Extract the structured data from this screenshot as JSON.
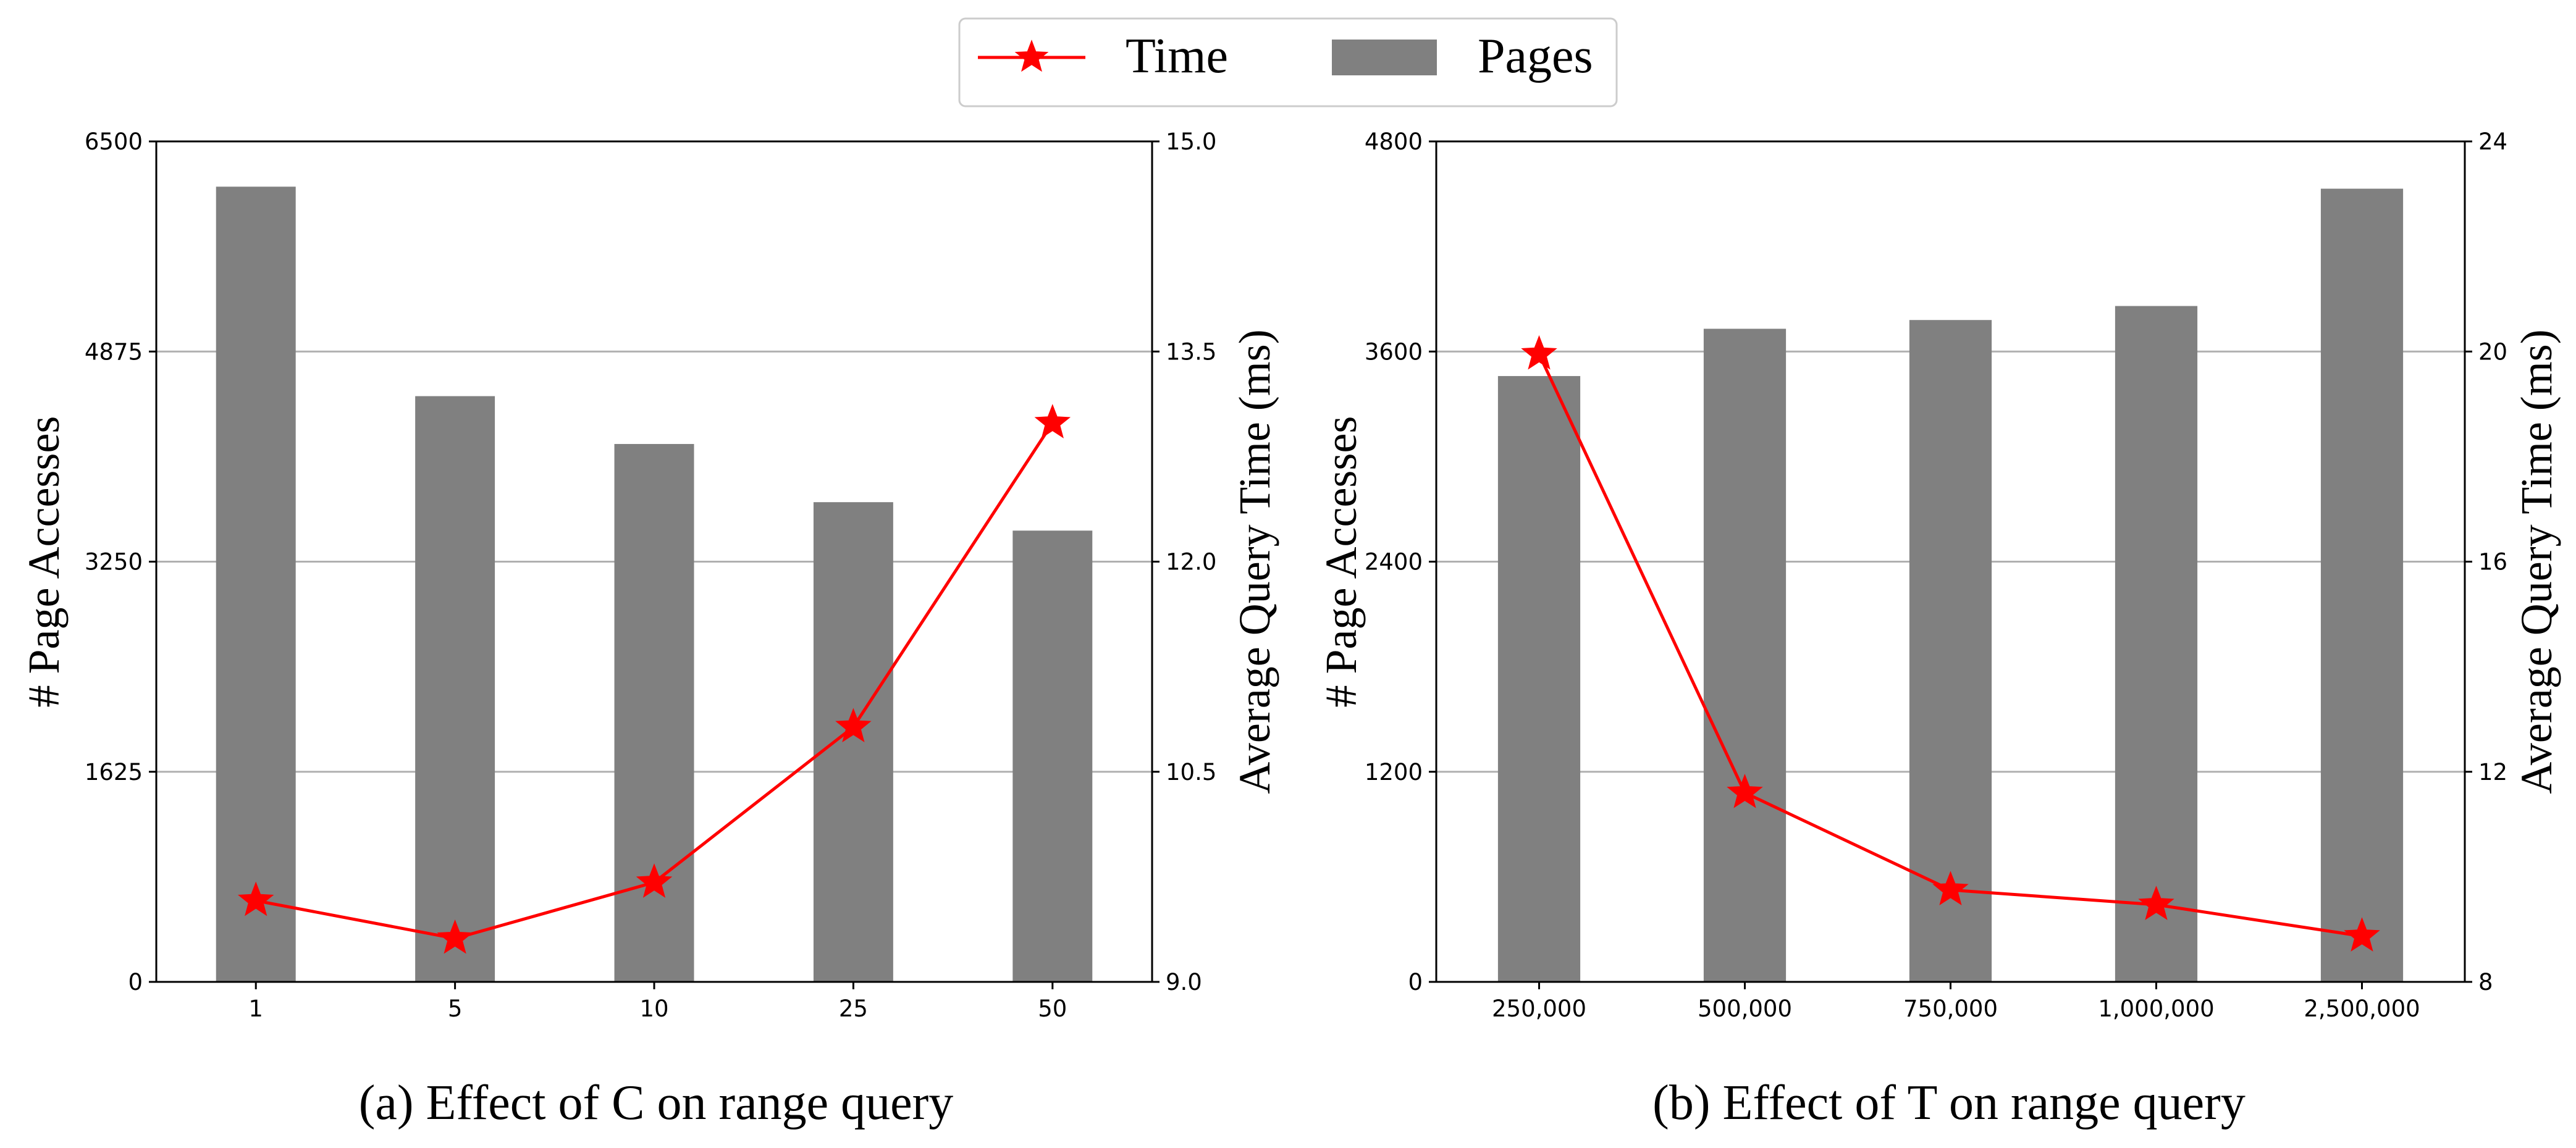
{
  "legend": {
    "entries": [
      {
        "label": "Time",
        "kind": "line-star",
        "color": "#ff0000"
      },
      {
        "label": "Pages",
        "kind": "bar",
        "color": "#808080"
      }
    ],
    "placement": "top-center"
  },
  "chart_data": [
    {
      "type": "bar",
      "caption": "(a) Effect of C on range query",
      "categories": [
        "1",
        "5",
        "10",
        "25",
        "50"
      ],
      "series": [
        {
          "name": "Pages",
          "type": "bar",
          "axis": "left",
          "color": "#808080",
          "values": [
            6150,
            4530,
            4160,
            3710,
            3490
          ]
        },
        {
          "name": "Time",
          "type": "line",
          "axis": "right",
          "color": "#ff0000",
          "marker": "star",
          "values": [
            9.58,
            9.31,
            9.71,
            10.82,
            12.99
          ]
        }
      ],
      "ylabel": "# Page Accesses",
      "ylim": [
        0,
        6500
      ],
      "yticks": [
        "0",
        "1625",
        "3250",
        "4875",
        "6500"
      ],
      "ylabel_right": "Average Query Time (ms)",
      "ylim_right": [
        9.0,
        15.0
      ],
      "yticks_right": [
        "9.0",
        "10.5",
        "12.0",
        "13.5",
        "15.0"
      ],
      "grid": "horizontal"
    },
    {
      "type": "bar",
      "caption": "(b) Effect of T on range query",
      "categories": [
        "250,000",
        "500,000",
        "750,000",
        "1,000,000",
        "2,500,000"
      ],
      "series": [
        {
          "name": "Pages",
          "type": "bar",
          "axis": "left",
          "color": "#808080",
          "values": [
            3460,
            3730,
            3780,
            3860,
            4530
          ]
        },
        {
          "name": "Time",
          "type": "line",
          "axis": "right",
          "color": "#ff0000",
          "marker": "star",
          "values": [
            19.95,
            11.6,
            9.75,
            9.47,
            8.87
          ]
        }
      ],
      "ylabel": "# Page Accesses",
      "ylim": [
        0,
        4800
      ],
      "yticks": [
        "0",
        "1200",
        "2400",
        "3600",
        "4800"
      ],
      "ylabel_right": "Average Query Time (ms)",
      "ylim_right": [
        8,
        24
      ],
      "yticks_right": [
        "8",
        "12",
        "16",
        "20",
        "24"
      ],
      "grid": "horizontal"
    }
  ]
}
